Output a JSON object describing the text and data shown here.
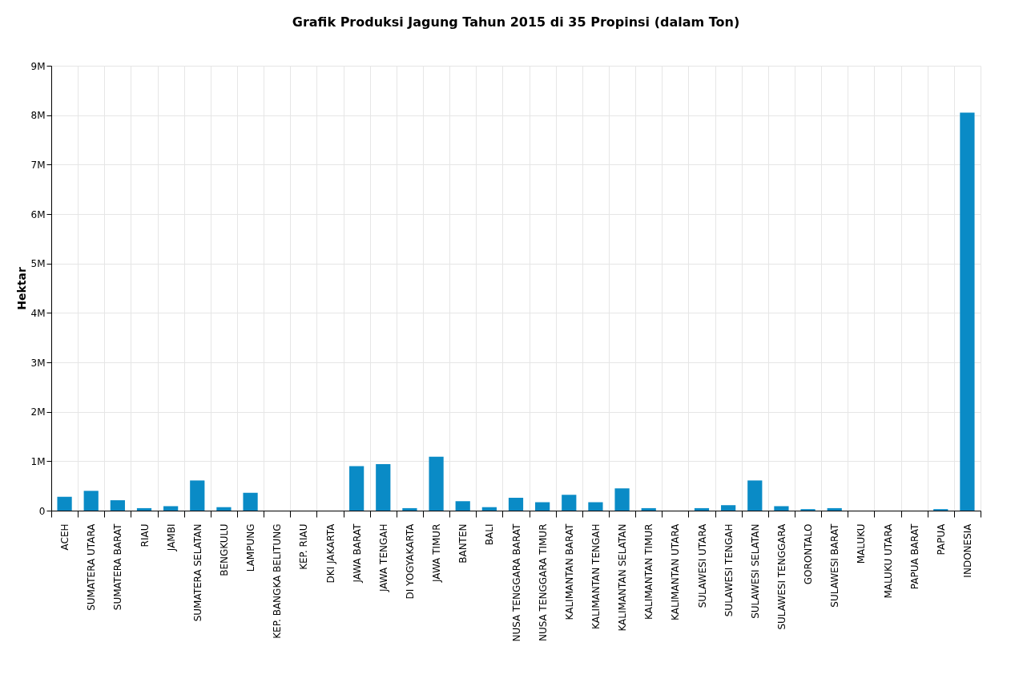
{
  "chart_data": {
    "type": "bar",
    "title": "Grafik Produksi Jagung Tahun 2015 di 35 Propinsi (dalam Ton)",
    "ylabel": "Hektar",
    "categories": [
      "ACEH",
      "SUMATERA UTARA",
      "SUMATERA BARAT",
      "RIAU",
      "JAMBI",
      "SUMATERA SELATAN",
      "BENGKULU",
      "LAMPUNG",
      "KEP. BANGKA BELITUNG",
      "KEP. RIAU",
      "DKI JAKARTA",
      "JAWA BARAT",
      "JAWA TENGAH",
      "DI YOGYAKARTA",
      "JAWA TIMUR",
      "BANTEN",
      "BALI",
      "NUSA TENGGARA BARAT",
      "NUSA TENGGARA TIMUR",
      "KALIMANTAN BARAT",
      "KALIMANTAN TENGAH",
      "KALIMANTAN SELATAN",
      "KALIMANTAN TIMUR",
      "KALIMANTAN UTARA",
      "SULAWESI UTARA",
      "SULAWESI TENGAH",
      "SULAWESI SELATAN",
      "SULAWESI TENGGARA",
      "GORONTALO",
      "SULAWESI BARAT",
      "MALUKU",
      "MALUKU UTARA",
      "PAPUA BARAT",
      "PAPUA",
      "INDONESIA"
    ],
    "values": [
      280000,
      400000,
      210000,
      50000,
      90000,
      610000,
      70000,
      360000,
      0,
      0,
      0,
      900000,
      940000,
      50000,
      1090000,
      190000,
      70000,
      260000,
      170000,
      320000,
      170000,
      450000,
      50000,
      0,
      50000,
      110000,
      610000,
      90000,
      30000,
      50000,
      0,
      0,
      0,
      30000,
      8050000
    ],
    "color": "#0a8bc6",
    "ylim": [
      0,
      9000000
    ],
    "yticks": [
      0,
      {
        "value": 1000000,
        "label": "1M"
      },
      {
        "value": 2000000,
        "label": "2M"
      },
      {
        "value": 3000000,
        "label": "3M"
      },
      {
        "value": 4000000,
        "label": "4M"
      },
      {
        "value": 5000000,
        "label": "5M"
      },
      {
        "value": 6000000,
        "label": "6M"
      },
      {
        "value": 7000000,
        "label": "7M"
      },
      {
        "value": 8000000,
        "label": "8M"
      },
      {
        "value": 9000000,
        "label": "9M"
      }
    ],
    "grid": true
  }
}
